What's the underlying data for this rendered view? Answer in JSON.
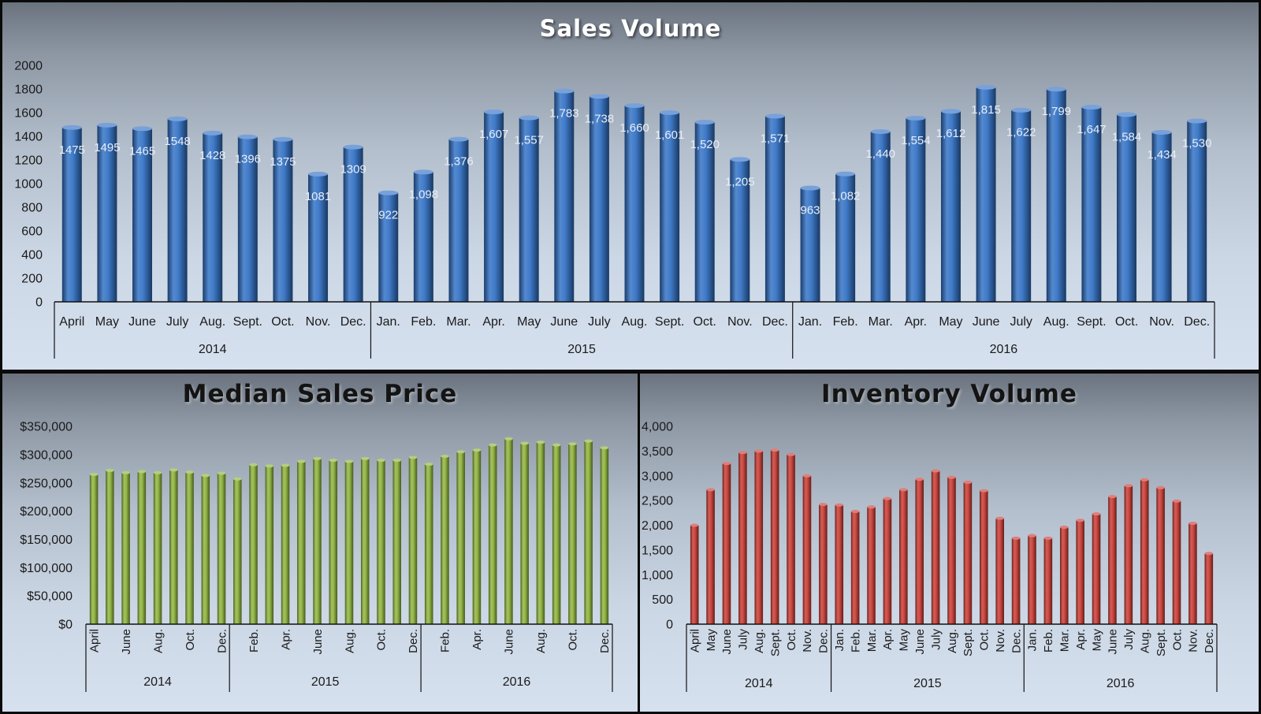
{
  "chart_data": [
    {
      "id": "sales",
      "type": "bar",
      "title": "Sales Volume",
      "year_groups": [
        {
          "label": "2014",
          "count": 9
        },
        {
          "label": "2015",
          "count": 12
        },
        {
          "label": "2016",
          "count": 12
        }
      ],
      "categories": [
        "April",
        "May",
        "June",
        "July",
        "Aug.",
        "Sept.",
        "Oct.",
        "Nov.",
        "Dec.",
        "Jan.",
        "Feb.",
        "Mar.",
        "Apr.",
        "May",
        "June",
        "July",
        "Aug.",
        "Sept.",
        "Oct.",
        "Nov.",
        "Dec.",
        "Jan.",
        "Feb.",
        "Mar.",
        "Apr.",
        "May",
        "June",
        "July",
        "Aug.",
        "Sept.",
        "Oct.",
        "Nov.",
        "Dec."
      ],
      "values": [
        1475,
        1495,
        1465,
        1548,
        1428,
        1396,
        1375,
        1081,
        1309,
        922,
        1098,
        1376,
        1607,
        1557,
        1783,
        1738,
        1660,
        1601,
        1520,
        1205,
        1571,
        963,
        1082,
        1440,
        1554,
        1612,
        1815,
        1622,
        1799,
        1647,
        1584,
        1434,
        1530
      ],
      "data_labels": [
        "1475",
        "1495",
        "1465",
        "1548",
        "1428",
        "1396",
        "1375",
        "1081",
        "1309",
        "922",
        "1,098",
        "1,376",
        "1,607",
        "1,557",
        "1,783",
        "1,738",
        "1,660",
        "1,601",
        "1,520",
        "1,205",
        "1,571",
        "963",
        "1,082",
        "1,440",
        "1,554",
        "1,612",
        "1,815",
        "1,622",
        "1,799",
        "1,647",
        "1,584",
        "1,434",
        "1,530"
      ],
      "ylim": [
        0,
        2000
      ],
      "yticks": [
        0,
        200,
        400,
        600,
        800,
        1000,
        1200,
        1400,
        1600,
        1800,
        2000
      ],
      "ytick_labels": [
        "0",
        "200",
        "400",
        "600",
        "800",
        "1000",
        "1200",
        "1400",
        "1600",
        "1800",
        "2000"
      ],
      "color": "#2f6fc4",
      "grid": false
    },
    {
      "id": "price",
      "type": "bar",
      "title": "Median Sales Price",
      "year_groups": [
        {
          "label": "2014",
          "count": 9
        },
        {
          "label": "2015",
          "count": 12
        },
        {
          "label": "2016",
          "count": 12
        }
      ],
      "tick_labels": [
        "April",
        "",
        "June",
        "",
        "Aug.",
        "",
        "Oct.",
        "",
        "Dec.",
        "",
        "Feb.",
        "",
        "Apr.",
        "",
        "June",
        "",
        "Aug.",
        "",
        "Oct.",
        "",
        "Dec.",
        "",
        "Feb.",
        "",
        "Apr.",
        "",
        "June",
        "",
        "Aug.",
        "",
        "Oct.",
        "",
        "Dec."
      ],
      "values": [
        265000,
        272000,
        268000,
        270000,
        268000,
        273000,
        269000,
        263000,
        267000,
        257000,
        282000,
        280000,
        281000,
        288000,
        293000,
        290000,
        288000,
        293000,
        290000,
        290000,
        295000,
        283000,
        297000,
        305000,
        308000,
        317000,
        328000,
        320000,
        322000,
        317000,
        319000,
        324000,
        312000
      ],
      "ylim": [
        0,
        350000
      ],
      "yticks": [
        0,
        50000,
        100000,
        150000,
        200000,
        250000,
        300000,
        350000
      ],
      "ytick_labels": [
        "$0",
        "$50,000",
        "$100,000",
        "$150,000",
        "$200,000",
        "$250,000",
        "$300,000",
        "$350,000"
      ],
      "color": "#8db33a",
      "grid": false
    },
    {
      "id": "inventory",
      "type": "bar",
      "title": "Inventory Volume",
      "year_groups": [
        {
          "label": "2014",
          "count": 9
        },
        {
          "label": "2015",
          "count": 12
        },
        {
          "label": "2016",
          "count": 12
        }
      ],
      "tick_labels": [
        "April",
        "May",
        "June",
        "July",
        "Aug.",
        "Sept.",
        "Oct.",
        "Nov.",
        "Dec.",
        "Jan.",
        "Feb.",
        "Mar.",
        "Apr.",
        "May",
        "June",
        "July",
        "Aug.",
        "Sept.",
        "Oct.",
        "Nov.",
        "Dec.",
        "Jan.",
        "Feb.",
        "Mar.",
        "Apr.",
        "May",
        "June",
        "July",
        "Aug.",
        "Sept.",
        "Oct.",
        "Nov.",
        "Dec."
      ],
      "values": [
        2000,
        2720,
        3250,
        3470,
        3500,
        3520,
        3430,
        3000,
        2420,
        2410,
        2280,
        2370,
        2540,
        2720,
        2930,
        3100,
        2970,
        2870,
        2700,
        2140,
        1740,
        1790,
        1740,
        1960,
        2100,
        2230,
        2580,
        2800,
        2920,
        2760,
        2490,
        2040,
        1430
      ],
      "ylim": [
        0,
        4000
      ],
      "yticks": [
        0,
        500,
        1000,
        1500,
        2000,
        2500,
        3000,
        3500,
        4000
      ],
      "ytick_labels": [
        "0",
        "500",
        "1,000",
        "1,500",
        "2,000",
        "2,500",
        "3,000",
        "3,500",
        "4,000"
      ],
      "color": "#c93a32",
      "grid": false
    }
  ]
}
